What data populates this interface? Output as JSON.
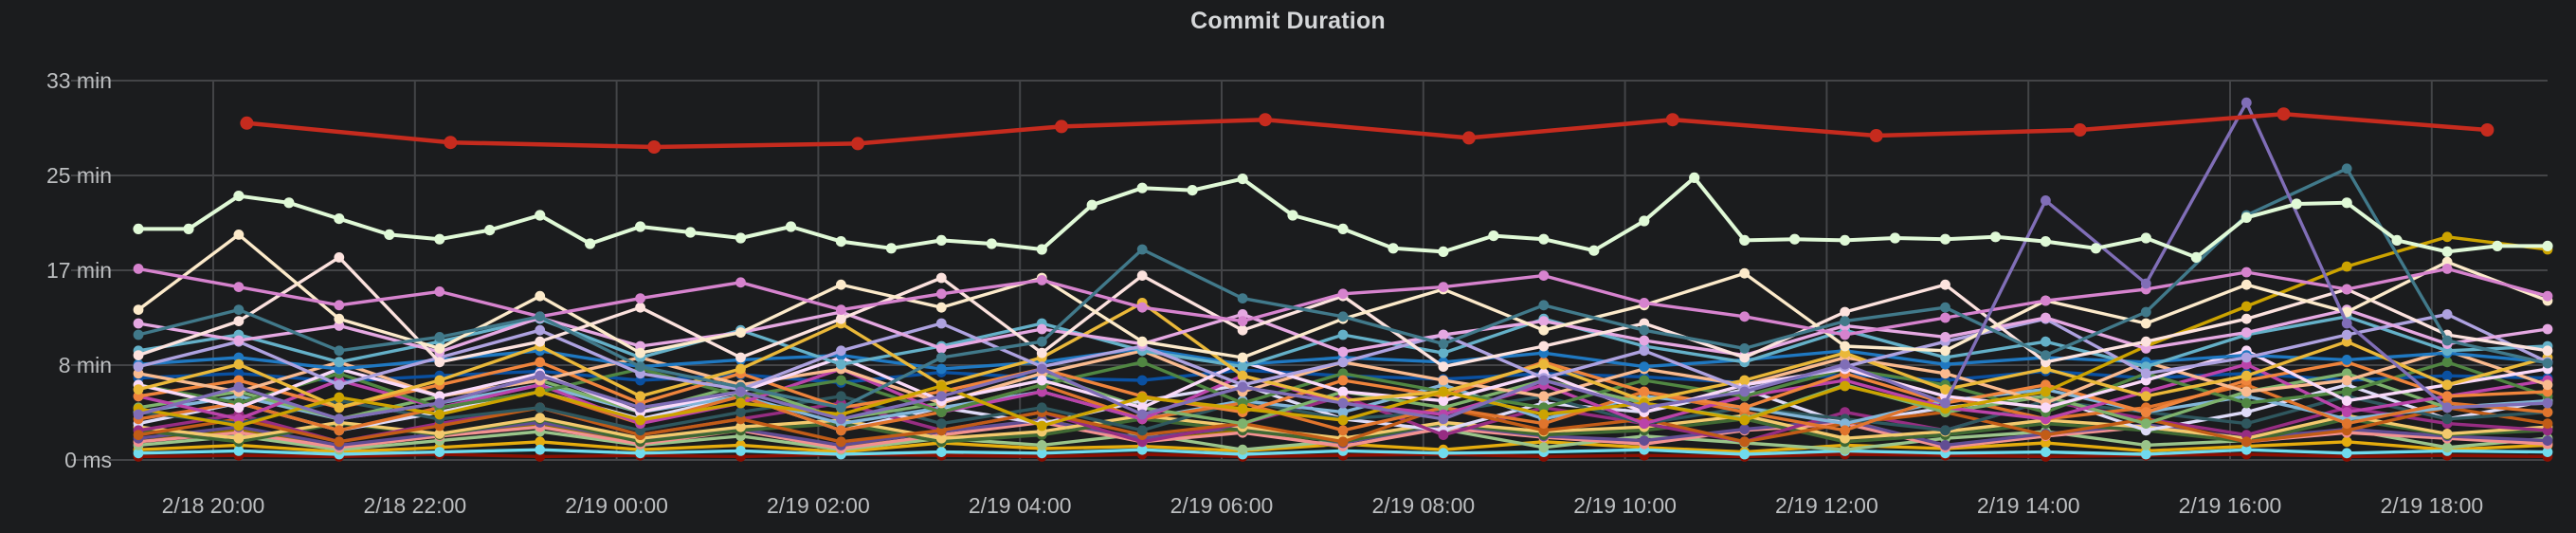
{
  "panel": {
    "title": "Commit Duration"
  },
  "colors": {
    "background": "#1b1c1e",
    "grid": "#434447",
    "tick_text": "#bcbec0",
    "title_text": "#d5d7d9"
  },
  "chart_data": {
    "type": "line",
    "title": "Commit Duration",
    "xlabel": "",
    "ylabel": "",
    "legend": "none",
    "grid": true,
    "x_range_label": "2/18 ~19:20 to 2/19 ~19:05",
    "x_ticks": [
      "2/18 20:00",
      "2/18 22:00",
      "2/19 00:00",
      "2/19 02:00",
      "2/19 04:00",
      "2/19 06:00",
      "2/19 08:00",
      "2/19 10:00",
      "2/19 12:00",
      "2/19 14:00",
      "2/19 16:00",
      "2/19 18:00"
    ],
    "y_ticks": [
      {
        "label": "33 min",
        "minutes": 33.333
      },
      {
        "label": "25 min",
        "minutes": 25
      },
      {
        "label": "17 min",
        "minutes": 16.667
      },
      {
        "label": "8 min",
        "minutes": 8.333
      },
      {
        "label": "0 ms",
        "minutes": 0
      }
    ],
    "ylim_minutes": [
      0,
      36
    ],
    "unit": "duration-minutes",
    "series": [
      {
        "c": "#890F02",
        "v": [
          0.3,
          0.4,
          0.3,
          0.5,
          0.3,
          0.4,
          0.3,
          0.5,
          0.4,
          0.3,
          0.5,
          0.3,
          0.4,
          0.5,
          0.3,
          0.4,
          0.3,
          0.5,
          0.4,
          0.3,
          0.4,
          0.5,
          0.3,
          0.4,
          0.3
        ]
      },
      {
        "c": "#E5AC0E",
        "v": [
          0.9,
          1.3,
          0.7,
          1.1,
          1.6,
          0.9,
          1.3,
          0.7,
          1.5,
          1.0,
          1.2,
          0.8,
          1.4,
          0.9,
          1.6,
          1.1,
          0.7,
          1.3,
          1.0,
          1.5,
          0.8,
          1.2,
          1.6,
          0.9,
          1.3
        ]
      },
      {
        "c": "#967302",
        "v": [
          1.6,
          2.6,
          1.1,
          2.1,
          3.1,
          1.6,
          2.6,
          1.1,
          2.1,
          3.6,
          1.6,
          2.6,
          1.1,
          3.1,
          2.1,
          1.6,
          2.6,
          3.6,
          1.1,
          2.1,
          3.1,
          1.6,
          2.6,
          2.1,
          1.6
        ]
      },
      {
        "c": "#70DBED",
        "v": [
          0.6,
          0.8,
          0.5,
          0.7,
          0.9,
          0.6,
          0.8,
          0.5,
          0.7,
          0.6,
          0.9,
          0.5,
          0.8,
          0.6,
          0.7,
          0.9,
          0.5,
          0.8,
          0.6,
          0.7,
          0.5,
          0.9,
          0.6,
          0.8,
          0.7
        ]
      },
      {
        "c": "#9AC48A",
        "v": [
          1.3,
          2.1,
          0.9,
          1.7,
          2.5,
          1.3,
          2.1,
          0.9,
          1.9,
          1.3,
          2.3,
          0.9,
          1.7,
          2.7,
          1.1,
          2.1,
          1.5,
          0.9,
          1.9,
          2.5,
          1.3,
          1.7,
          2.7,
          1.1,
          1.9
        ]
      },
      {
        "c": "#F29191",
        "v": [
          1.6,
          2.4,
          1.1,
          2.1,
          2.9,
          1.4,
          2.6,
          1.0,
          2.2,
          3.3,
          1.6,
          2.4,
          1.2,
          2.8,
          2.0,
          1.4,
          2.6,
          3.2,
          1.1,
          2.1,
          2.9,
          1.6,
          2.4,
          1.9,
          1.4
        ]
      },
      {
        "c": "#614D93",
        "v": [
          1.9,
          2.9,
          1.3,
          2.3,
          3.3,
          1.7,
          2.7,
          1.3,
          2.5,
          3.5,
          1.9,
          2.9,
          1.5,
          3.1,
          2.1,
          1.7,
          2.7,
          3.5,
          1.3,
          2.3,
          3.1,
          1.9,
          2.7,
          2.1,
          1.7
        ]
      },
      {
        "c": "#3F6833",
        "v": [
          2.6,
          1.6,
          3.2,
          2.2,
          3.6,
          1.6,
          2.6,
          3.2,
          1.6,
          2.2,
          3.6,
          2.6,
          1.6,
          3.2,
          2.2,
          2.6,
          3.6,
          1.6,
          2.2,
          3.2,
          2.6,
          1.6,
          3.6,
          2.2,
          2.6
        ]
      },
      {
        "c": "#F2C96D",
        "v": [
          2.9,
          1.9,
          3.3,
          2.3,
          3.7,
          1.9,
          2.9,
          3.5,
          1.9,
          2.5,
          3.9,
          2.9,
          1.9,
          3.3,
          2.5,
          2.9,
          3.9,
          1.9,
          2.5,
          3.5,
          2.9,
          1.9,
          3.9,
          2.3,
          2.9
        ]
      },
      {
        "c": "#DEDAF7",
        "v": [
          3.2,
          5.0,
          2.6,
          4.2,
          6.0,
          3.6,
          5.6,
          2.6,
          4.6,
          3.2,
          5.2,
          6.6,
          3.6,
          2.6,
          5.0,
          4.2,
          6.2,
          3.2,
          4.6,
          5.6,
          2.6,
          4.2,
          6.6,
          3.6,
          5.2
        ]
      },
      {
        "c": "#962D82",
        "v": [
          2.6,
          4.0,
          1.6,
          3.2,
          4.6,
          2.2,
          3.6,
          5.0,
          2.6,
          4.2,
          1.6,
          3.2,
          5.6,
          2.2,
          4.6,
          3.2,
          1.6,
          4.2,
          2.6,
          5.2,
          3.6,
          2.2,
          4.6,
          3.2,
          2.6
        ]
      },
      {
        "c": "#C15C17",
        "v": [
          2.2,
          3.6,
          1.6,
          3.0,
          4.6,
          2.2,
          3.6,
          1.6,
          2.6,
          4.2,
          2.2,
          3.2,
          1.6,
          4.6,
          2.6,
          3.6,
          1.6,
          3.2,
          4.2,
          2.2,
          3.6,
          1.6,
          2.6,
          4.6,
          3.2
        ]
      },
      {
        "c": "#2F575E",
        "v": [
          4.2,
          3.2,
          5.2,
          3.6,
          4.6,
          2.6,
          4.2,
          5.6,
          3.2,
          4.6,
          2.6,
          5.2,
          3.6,
          4.2,
          5.6,
          3.2,
          4.6,
          3.6,
          2.6,
          5.2,
          4.2,
          3.2,
          5.6,
          3.6,
          4.2
        ]
      },
      {
        "c": "#82B5D8",
        "v": [
          4.2,
          5.6,
          3.6,
          5.0,
          6.6,
          4.2,
          5.6,
          3.2,
          4.6,
          6.0,
          3.6,
          5.2,
          4.2,
          6.6,
          3.6,
          5.6,
          4.6,
          3.2,
          5.2,
          6.2,
          4.2,
          5.6,
          3.6,
          4.6,
          5.2
        ]
      },
      {
        "c": "#E0752D",
        "v": [
          3.6,
          5.0,
          2.6,
          4.6,
          6.0,
          3.2,
          5.6,
          2.6,
          4.2,
          6.6,
          3.6,
          5.0,
          2.6,
          4.6,
          3.2,
          6.0,
          4.2,
          2.6,
          5.6,
          3.6,
          4.6,
          6.6,
          3.2,
          5.0,
          4.2
        ]
      },
      {
        "c": "#0A50A1",
        "v": [
          7.2,
          7.6,
          6.9,
          7.4,
          7.8,
          7.0,
          7.5,
          6.8,
          7.7,
          7.2,
          7.0,
          7.9,
          7.4,
          7.1,
          7.6,
          7.3,
          6.8,
          7.5,
          7.0,
          7.8,
          7.2,
          7.6,
          7.0,
          7.4,
          7.2
        ]
      },
      {
        "c": "#7EB26D",
        "v": [
          4.6,
          6.0,
          3.6,
          5.6,
          7.0,
          4.2,
          6.6,
          3.6,
          5.0,
          7.6,
          4.6,
          3.2,
          6.0,
          4.6,
          7.0,
          5.0,
          3.6,
          6.6,
          4.2,
          5.6,
          3.2,
          6.0,
          7.6,
          4.6,
          5.0
        ]
      },
      {
        "c": "#BA43A9",
        "v": [
          5.6,
          3.6,
          7.0,
          4.6,
          6.6,
          3.2,
          5.0,
          8.0,
          4.2,
          6.0,
          3.6,
          7.4,
          5.0,
          4.0,
          6.6,
          3.2,
          5.6,
          7.0,
          4.6,
          3.6,
          6.0,
          8.4,
          4.2,
          5.6,
          7.0
        ]
      },
      {
        "c": "#508642",
        "v": [
          6.6,
          5.0,
          7.6,
          4.6,
          6.0,
          8.0,
          5.6,
          7.0,
          4.2,
          6.6,
          8.6,
          5.0,
          7.6,
          6.0,
          4.6,
          7.0,
          5.6,
          8.0,
          6.6,
          4.2,
          7.6,
          5.0,
          6.0,
          8.6,
          5.6
        ]
      },
      {
        "c": "#EF843C",
        "v": [
          5.6,
          7.0,
          4.6,
          6.6,
          8.6,
          5.0,
          7.6,
          4.6,
          6.0,
          8.0,
          5.6,
          4.2,
          7.0,
          5.6,
          8.6,
          6.0,
          4.6,
          7.6,
          5.0,
          6.6,
          4.2,
          7.0,
          8.6,
          5.6,
          6.0
        ]
      },
      {
        "c": "#F9BA8F",
        "v": [
          7.6,
          6.0,
          8.6,
          5.6,
          7.0,
          9.0,
          6.6,
          8.0,
          5.0,
          7.6,
          9.6,
          6.0,
          8.6,
          7.0,
          5.6,
          8.0,
          6.6,
          9.0,
          7.6,
          5.0,
          8.6,
          6.0,
          7.0,
          9.6,
          6.6
        ]
      },
      {
        "c": "#F9D9F9",
        "v": [
          6.6,
          4.6,
          8.0,
          5.6,
          7.6,
          4.2,
          6.0,
          9.0,
          5.2,
          7.0,
          4.6,
          8.6,
          6.0,
          5.2,
          7.6,
          4.2,
          6.6,
          8.0,
          5.6,
          4.6,
          7.0,
          9.6,
          5.2,
          6.6,
          8.0
        ]
      },
      {
        "c": "#1F78C1",
        "v": [
          8.4,
          9.0,
          8.0,
          8.8,
          9.6,
          8.2,
          8.8,
          9.2,
          8.0,
          8.6,
          9.8,
          8.4,
          9.0,
          8.6,
          9.4,
          8.2,
          8.8,
          9.6,
          8.4,
          9.0,
          8.6,
          9.2,
          8.8,
          9.4,
          8.6
        ]
      },
      {
        "c": "#64B0C8",
        "v": [
          9.6,
          11.0,
          8.6,
          10.4,
          12.4,
          9.0,
          11.4,
          8.4,
          10.0,
          12.0,
          9.6,
          8.2,
          11.0,
          9.4,
          12.4,
          10.0,
          8.6,
          11.4,
          9.0,
          10.4,
          8.2,
          11.0,
          12.6,
          9.6,
          10.0
        ]
      },
      {
        "c": "#EAB839",
        "v": [
          6.2,
          8.4,
          4.6,
          7.0,
          10.0,
          5.6,
          8.0,
          12.0,
          6.6,
          9.0,
          13.8,
          7.4,
          5.2,
          6.0,
          8.4,
          5.2,
          7.0,
          9.4,
          6.2,
          8.0,
          5.6,
          7.4,
          10.4,
          6.6,
          9.0
        ]
      },
      {
        "c": "#AEA2E0",
        "v": [
          8.2,
          10.4,
          6.6,
          9.0,
          11.4,
          7.6,
          6.2,
          9.6,
          12.0,
          8.2,
          10.0,
          6.6,
          8.6,
          11.0,
          7.2,
          9.6,
          6.2,
          8.2,
          10.4,
          12.4,
          7.6,
          9.0,
          11.0,
          12.8,
          8.6
        ]
      },
      {
        "c": "#CCA300",
        "v": [
          4.5,
          3.0,
          5.5,
          4.0,
          6.0,
          3.5,
          5.0,
          4.0,
          6.5,
          3.0,
          5.5,
          4.5,
          3.5,
          6.0,
          4.0,
          5.0,
          3.5,
          6.5,
          4.5,
          6.0,
          10.0,
          13.5,
          17.0,
          19.6,
          18.5
        ]
      },
      {
        "c": "#E5A8E2",
        "v": [
          12.0,
          10.5,
          11.8,
          9.5,
          12.5,
          10.0,
          11.2,
          13.0,
          9.8,
          11.5,
          10.2,
          12.8,
          9.5,
          11.0,
          12.2,
          10.5,
          9.2,
          11.8,
          10.8,
          12.5,
          9.8,
          11.2,
          13.2,
          10.2,
          11.5
        ]
      },
      {
        "c": "#FCE2DE",
        "v": [
          9.2,
          12.2,
          17.8,
          8.6,
          10.4,
          13.4,
          9.0,
          12.4,
          16.0,
          9.4,
          16.2,
          11.4,
          14.4,
          8.2,
          10.0,
          12.0,
          9.0,
          13.0,
          15.4,
          8.6,
          10.4,
          12.4,
          15.0,
          11.0,
          9.6
        ]
      },
      {
        "c": "#FCEACA",
        "v": [
          13.2,
          19.8,
          12.4,
          9.8,
          14.4,
          9.4,
          11.2,
          15.4,
          13.4,
          16.0,
          10.4,
          9.0,
          12.4,
          15.0,
          11.4,
          13.6,
          16.4,
          10.0,
          9.6,
          14.0,
          12.0,
          15.4,
          13.0,
          17.4,
          14.0
        ]
      },
      {
        "c": "#D683CE",
        "v": [
          16.8,
          15.2,
          13.6,
          14.8,
          12.6,
          14.2,
          15.6,
          13.2,
          14.6,
          15.8,
          13.4,
          12.2,
          14.6,
          15.2,
          16.2,
          13.8,
          12.6,
          11.0,
          12.5,
          14.0,
          15.0,
          16.5,
          15.0,
          16.8,
          14.4
        ]
      },
      {
        "c": "#41798A",
        "v": [
          11.0,
          13.2,
          9.6,
          10.8,
          12.6,
          8.2,
          6.4,
          4.6,
          9.0,
          10.4,
          18.5,
          14.2,
          12.6,
          10.2,
          13.6,
          11.4,
          9.8,
          12.2,
          13.4,
          9.2,
          13.0,
          21.5,
          25.6,
          10.5,
          8.5
        ]
      },
      {
        "c": "#806EB7",
        "v": [
          4.0,
          6.4,
          3.6,
          5.0,
          7.4,
          4.6,
          6.0,
          3.6,
          5.6,
          8.0,
          4.0,
          6.4,
          5.0,
          3.6,
          7.0,
          4.6,
          6.0,
          8.4,
          5.0,
          22.8,
          15.5,
          31.4,
          12.0,
          4.6,
          5.0
        ]
      },
      {
        "c": "#E0F9D7",
        "w": 4,
        "r": 5.6,
        "v": [
          20.3,
          20.3,
          23.2,
          22.6,
          21.2,
          19.8,
          19.4,
          20.2,
          21.5,
          19.0,
          20.5,
          20.0,
          19.5,
          20.5,
          19.2,
          18.6,
          19.3,
          19.0,
          18.5,
          22.4,
          23.9,
          23.7,
          24.7,
          21.5,
          20.3,
          18.6,
          18.3,
          19.7,
          19.4,
          18.4,
          21.0,
          24.8,
          19.3,
          19.4,
          19.3,
          19.5,
          19.4,
          19.6,
          19.2,
          18.6,
          19.5,
          17.8,
          21.3,
          22.5,
          22.6,
          19.3,
          18.3,
          18.8,
          18.8
        ]
      },
      {
        "c": "#C62B1E",
        "w": 4.5,
        "r": 7,
        "f0": 0.045,
        "f1": 0.975,
        "v": [
          29.6,
          27.9,
          27.5,
          27.8,
          29.3,
          29.9,
          28.3,
          29.9,
          28.5,
          29.0,
          30.4,
          29.0
        ]
      }
    ]
  }
}
